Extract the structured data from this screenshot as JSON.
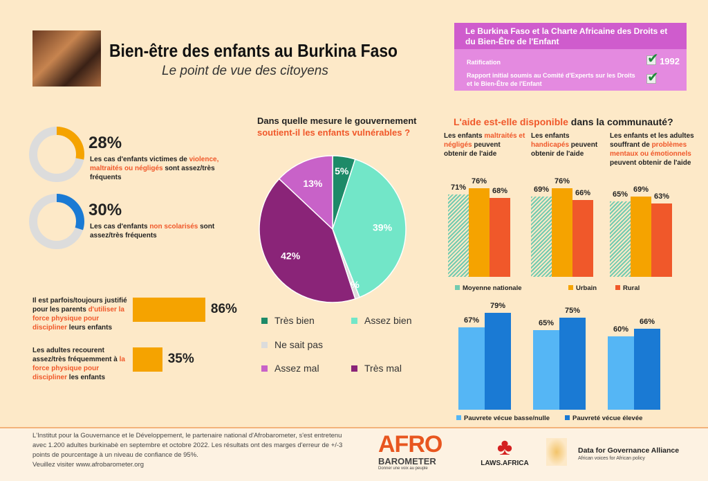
{
  "header": {
    "title": "Bien-être des enfants au Burkina Faso",
    "subtitle": "Le point de vue des citoyens"
  },
  "charter": {
    "title": "Le Burkina Faso et la Charte Africaine des Droits et du Bien-Être de l'Enfant",
    "ratification": "Ratification",
    "ratification_year": "1992",
    "report": "Rapport initial soumis au Comité d'Experts sur les Droits et le Bien-Être de l'Enfant"
  },
  "colors": {
    "orange": "#f5a300",
    "red": "#f0582a",
    "blue": "#1a7ad4",
    "teal": "#72e6c8",
    "purple": "#8a2478"
  },
  "stats": [
    {
      "value": 28,
      "label": "28%",
      "pre": "Les cas d'enfants victimes de ",
      "hl": "violence, maltraités ou négligés",
      "post": " sont assez/très fréquents",
      "color": "#f5a300"
    },
    {
      "value": 30,
      "label": "30%",
      "pre": "Les cas d'enfants ",
      "hl": "non scolarisés",
      "post": " sont assez/très fréquents",
      "color": "#1a7ad4"
    }
  ],
  "force": [
    {
      "value": 86,
      "label": "86%",
      "pre": "Il est parfois/toujours justifié pour les parents ",
      "hl": "d'utiliser la force physique pour discipliner",
      "post": " leurs enfants"
    },
    {
      "value": 35,
      "label": "35%",
      "pre": "Les adultes recourent assez/très fréquemment à ",
      "hl": "la force physique pour discipliner",
      "post": " les enfants"
    }
  ],
  "chart_data": [
    {
      "type": "pie",
      "title": "Dans quelle mesure le gouvernement",
      "title_hl": "soutient-il les enfants vulnérables ?",
      "slices": [
        {
          "name": "Très bien",
          "value": 5,
          "label": "5%",
          "color": "#1d8a68"
        },
        {
          "name": "Assez bien",
          "value": 39,
          "label": "39%",
          "color": "#72e6c8"
        },
        {
          "name": "Ne sait pas",
          "value": 1,
          "label": "1%",
          "color": "#dcdcdc"
        },
        {
          "name": "Très mal",
          "value": 42,
          "label": "42%",
          "color": "#8a2478"
        },
        {
          "name": "Assez mal",
          "value": 13,
          "label": "13%",
          "color": "#c862c8"
        }
      ],
      "legend_order": [
        0,
        1,
        2,
        4,
        3
      ]
    },
    {
      "type": "bar",
      "title_hl": "L'aide est-elle disponible",
      "title": " dans la communauté?",
      "categories": [
        {
          "pre": "Les enfants ",
          "hl": "maltraités et négligés",
          "post": " peuvent obtenir de l'aide"
        },
        {
          "pre": "Les enfants ",
          "hl": "handicapés",
          "post": " peuvent obtenir de l'aide"
        },
        {
          "pre": "Les enfants et les adultes souffrant de ",
          "hl": "problèmes mentaux ou émotionnels",
          "post": " peuvent obtenir de l'aide"
        }
      ],
      "series": [
        {
          "name": "Moyenne nationale",
          "values": [
            71,
            69,
            65
          ],
          "color": "#72cbb0"
        },
        {
          "name": "Urbain",
          "values": [
            76,
            76,
            69
          ],
          "color": "#f5a300"
        },
        {
          "name": "Rural",
          "values": [
            68,
            66,
            63
          ],
          "color": "#f0582a"
        }
      ],
      "ylim": [
        0,
        100
      ]
    },
    {
      "type": "bar",
      "categories": [
        "",
        "",
        ""
      ],
      "series": [
        {
          "name": "Pauvrete vécue basse/nulle",
          "values": [
            67,
            65,
            60
          ],
          "color": "#55b6f5"
        },
        {
          "name": "Pauvreté vécue élevée",
          "values": [
            79,
            75,
            66
          ],
          "color": "#1a7ad4"
        }
      ],
      "ylim": [
        0,
        100
      ]
    }
  ],
  "footer": {
    "text": "L'Institut pour la Gouvernance et le Développement, le partenaire national d'Afrobarometer, s'est entretenu avec 1.200 adultes burkinabè en septembre et octobre 2022. Les résultats ont des marges d'erreur de +/-3 points de pourcentage à un niveau de confiance de 95%.",
    "visit": "Veuillez visiter www.afrobarometer.org",
    "afro_logo": "AFRO",
    "afro_sub": "BAROMETER",
    "afro_tag": "Donner une voix au peuple",
    "laws": "LAWS.AFRICA",
    "dga": "Data for Governance Alliance",
    "dga_tag": "African voices for African policy"
  }
}
